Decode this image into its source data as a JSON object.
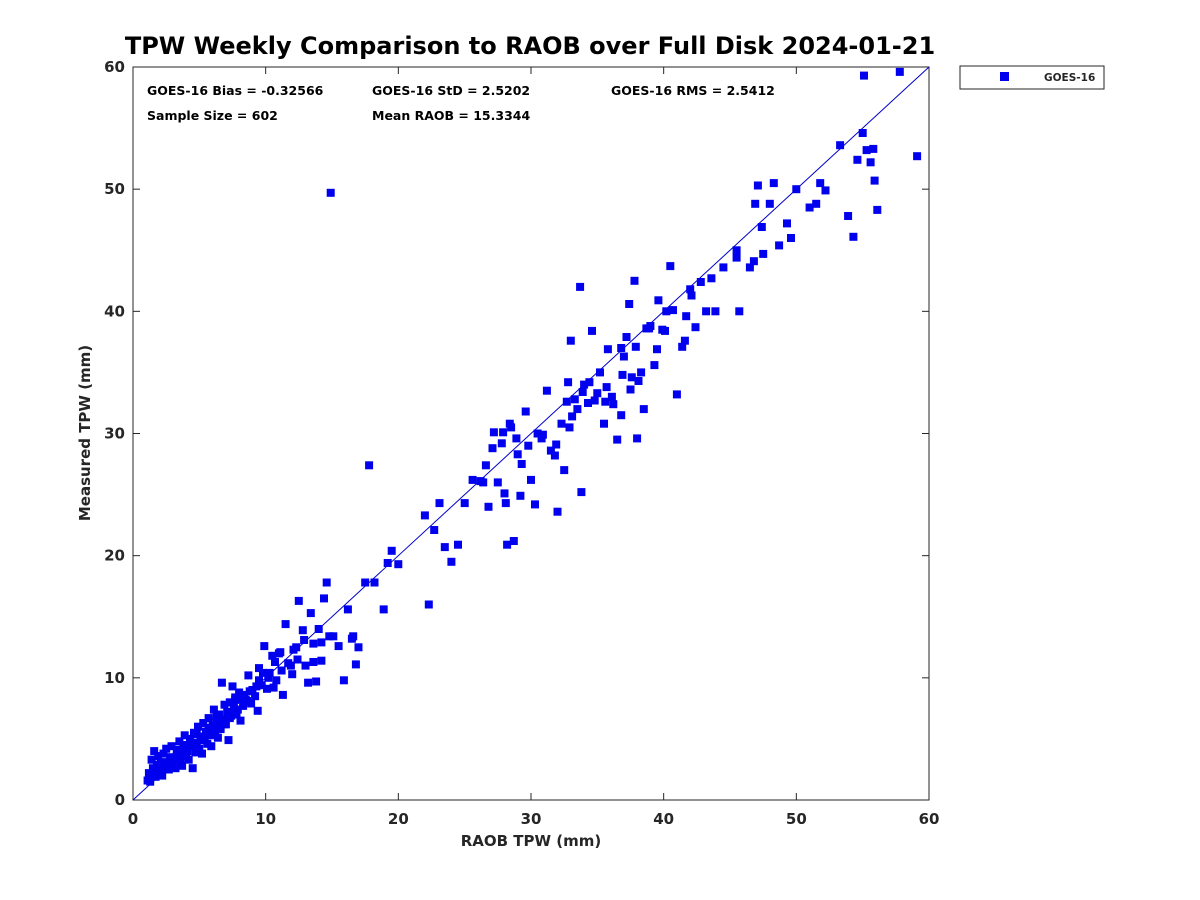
{
  "chart_data": {
    "type": "scatter",
    "title": "TPW Weekly Comparison to RAOB over Full Disk 2024-01-21",
    "xlabel": "RAOB TPW (mm)",
    "ylabel": "Measured TPW (mm)",
    "xlim": [
      0,
      60
    ],
    "ylim": [
      0,
      60
    ],
    "xticks": [
      "0",
      "10",
      "20",
      "30",
      "40",
      "50",
      "60"
    ],
    "yticks": [
      "0",
      "10",
      "20",
      "30",
      "40",
      "50",
      "60"
    ],
    "grid": false,
    "legend_position": "outside-top-right",
    "reference_line": {
      "name": "1:1",
      "x": [
        0,
        60
      ],
      "y": [
        0,
        60
      ],
      "color": "#0000cc"
    },
    "stats": {
      "bias": "GOES-16 Bias = -0.32566",
      "std": "GOES-16 StD = 2.5202",
      "rms": "GOES-16 RMS = 2.5412",
      "sample_size": "Sample Size = 602",
      "mean_raob": "Mean RAOB = 15.3344"
    },
    "series": [
      {
        "name": "GOES-16",
        "color": "#0000ee",
        "marker": "square",
        "points": [
          [
            1.1,
            1.6
          ],
          [
            1.2,
            2.2
          ],
          [
            1.3,
            1.8
          ],
          [
            1.4,
            3.3
          ],
          [
            1.5,
            2.6
          ],
          [
            1.6,
            4.0
          ],
          [
            1.7,
            1.9
          ],
          [
            1.8,
            2.9
          ],
          [
            1.9,
            3.6
          ],
          [
            2.0,
            2.3
          ],
          [
            2.1,
            3.1
          ],
          [
            2.2,
            2.0
          ],
          [
            2.3,
            3.8
          ],
          [
            2.4,
            2.7
          ],
          [
            2.5,
            4.2
          ],
          [
            2.6,
            3.0
          ],
          [
            2.7,
            2.5
          ],
          [
            2.8,
            3.5
          ],
          [
            2.9,
            4.4
          ],
          [
            3.0,
            2.9
          ],
          [
            3.1,
            3.3
          ],
          [
            3.2,
            2.6
          ],
          [
            3.3,
            4.1
          ],
          [
            3.4,
            3.7
          ],
          [
            3.5,
            4.8
          ],
          [
            3.6,
            3.2
          ],
          [
            3.7,
            2.8
          ],
          [
            3.8,
            4.5
          ],
          [
            3.9,
            5.3
          ],
          [
            4.0,
            3.6
          ],
          [
            4.1,
            4.0
          ],
          [
            4.2,
            3.3
          ],
          [
            4.3,
            5.0
          ],
          [
            4.4,
            4.4
          ],
          [
            4.5,
            2.6
          ],
          [
            4.6,
            5.5
          ],
          [
            4.7,
            3.9
          ],
          [
            4.8,
            4.7
          ],
          [
            4.9,
            6.0
          ],
          [
            5.0,
            4.2
          ],
          [
            5.1,
            5.2
          ],
          [
            5.2,
            3.8
          ],
          [
            5.3,
            6.3
          ],
          [
            5.4,
            4.9
          ],
          [
            5.5,
            5.6
          ],
          [
            5.6,
            4.6
          ],
          [
            5.7,
            6.7
          ],
          [
            5.8,
            5.3
          ],
          [
            5.9,
            4.4
          ],
          [
            6.0,
            6.1
          ],
          [
            6.1,
            7.4
          ],
          [
            6.2,
            5.6
          ],
          [
            6.3,
            6.4
          ],
          [
            6.4,
            5.1
          ],
          [
            6.5,
            7.0
          ],
          [
            6.6,
            6.0
          ],
          [
            6.7,
            9.6
          ],
          [
            6.8,
            6.6
          ],
          [
            6.9,
            7.8
          ],
          [
            7.0,
            6.2
          ],
          [
            7.1,
            7.2
          ],
          [
            7.2,
            4.9
          ],
          [
            7.3,
            8.0
          ],
          [
            7.4,
            6.9
          ],
          [
            7.5,
            9.3
          ],
          [
            7.6,
            7.5
          ],
          [
            7.7,
            8.4
          ],
          [
            7.8,
            7.0
          ],
          [
            8.0,
            8.8
          ],
          [
            8.1,
            6.5
          ],
          [
            8.3,
            7.7
          ],
          [
            8.5,
            8.2
          ],
          [
            8.7,
            10.2
          ],
          [
            8.9,
            7.9
          ],
          [
            9.0,
            9.0
          ],
          [
            9.2,
            8.5
          ],
          [
            9.4,
            7.3
          ],
          [
            9.5,
            10.8
          ],
          [
            9.7,
            9.4
          ],
          [
            9.9,
            12.6
          ],
          [
            10.1,
            9.1
          ],
          [
            10.3,
            10.4
          ],
          [
            10.5,
            11.8
          ],
          [
            10.8,
            9.8
          ],
          [
            11.0,
            12.0
          ],
          [
            11.3,
            8.6
          ],
          [
            11.5,
            14.4
          ],
          [
            11.7,
            11.2
          ],
          [
            12.0,
            10.3
          ],
          [
            12.3,
            12.5
          ],
          [
            12.5,
            16.3
          ],
          [
            12.8,
            13.9
          ],
          [
            13.0,
            11.0
          ],
          [
            13.2,
            9.6
          ],
          [
            13.4,
            15.3
          ],
          [
            13.6,
            12.8
          ],
          [
            13.8,
            9.7
          ],
          [
            14.0,
            14.0
          ],
          [
            14.2,
            11.4
          ],
          [
            14.4,
            16.5
          ],
          [
            14.6,
            17.8
          ],
          [
            14.8,
            13.4
          ],
          [
            14.9,
            49.7
          ],
          [
            15.5,
            12.6
          ],
          [
            15.9,
            9.8
          ],
          [
            16.2,
            15.6
          ],
          [
            16.5,
            13.2
          ],
          [
            16.8,
            11.1
          ],
          [
            17.0,
            12.5
          ],
          [
            17.5,
            17.8
          ],
          [
            17.8,
            27.4
          ],
          [
            18.2,
            17.8
          ],
          [
            18.9,
            15.6
          ],
          [
            19.2,
            19.4
          ],
          [
            19.5,
            20.4
          ],
          [
            20.0,
            19.3
          ],
          [
            22.0,
            23.3
          ],
          [
            22.3,
            16.0
          ],
          [
            22.7,
            22.1
          ],
          [
            23.1,
            24.3
          ],
          [
            23.5,
            20.7
          ],
          [
            24.0,
            19.5
          ],
          [
            24.5,
            20.9
          ],
          [
            25.0,
            24.3
          ],
          [
            25.6,
            26.2
          ],
          [
            26.2,
            26.1
          ],
          [
            26.6,
            27.4
          ],
          [
            26.8,
            24.0
          ],
          [
            27.2,
            30.1
          ],
          [
            27.5,
            26.0
          ],
          [
            27.8,
            29.2
          ],
          [
            28.0,
            25.1
          ],
          [
            28.2,
            20.9
          ],
          [
            28.5,
            30.5
          ],
          [
            28.7,
            21.2
          ],
          [
            29.0,
            28.3
          ],
          [
            29.3,
            27.5
          ],
          [
            29.6,
            31.8
          ],
          [
            30.0,
            26.2
          ],
          [
            30.3,
            24.2
          ],
          [
            30.5,
            30.0
          ],
          [
            30.8,
            29.6
          ],
          [
            31.2,
            33.5
          ],
          [
            31.5,
            28.6
          ],
          [
            31.8,
            28.2
          ],
          [
            32.0,
            23.6
          ],
          [
            32.3,
            30.8
          ],
          [
            32.5,
            27.0
          ],
          [
            32.8,
            34.2
          ],
          [
            33.0,
            37.6
          ],
          [
            33.3,
            32.8
          ],
          [
            33.7,
            42.0
          ],
          [
            33.8,
            25.2
          ],
          [
            34.0,
            34.0
          ],
          [
            34.3,
            32.5
          ],
          [
            34.6,
            38.4
          ],
          [
            35.0,
            33.3
          ],
          [
            35.2,
            35.0
          ],
          [
            35.5,
            30.8
          ],
          [
            35.8,
            36.9
          ],
          [
            36.2,
            32.4
          ],
          [
            36.5,
            29.5
          ],
          [
            36.8,
            31.5
          ],
          [
            37.0,
            36.3
          ],
          [
            37.2,
            37.9
          ],
          [
            37.4,
            40.6
          ],
          [
            37.6,
            34.6
          ],
          [
            37.8,
            42.5
          ],
          [
            38.0,
            29.6
          ],
          [
            38.3,
            35.0
          ],
          [
            38.5,
            32.0
          ],
          [
            38.7,
            38.6
          ],
          [
            39.0,
            38.8
          ],
          [
            39.3,
            35.6
          ],
          [
            39.6,
            40.9
          ],
          [
            39.9,
            38.5
          ],
          [
            40.2,
            40.0
          ],
          [
            40.5,
            43.7
          ],
          [
            41.0,
            33.2
          ],
          [
            41.4,
            37.1
          ],
          [
            41.7,
            39.6
          ],
          [
            42.0,
            41.8
          ],
          [
            42.4,
            38.7
          ],
          [
            42.8,
            42.4
          ],
          [
            43.2,
            40.0
          ],
          [
            43.6,
            42.7
          ],
          [
            44.5,
            43.6
          ],
          [
            45.5,
            45.0
          ],
          [
            45.7,
            40.0
          ],
          [
            46.5,
            43.6
          ],
          [
            46.9,
            48.8
          ],
          [
            47.1,
            50.3
          ],
          [
            47.4,
            46.9
          ],
          [
            48.0,
            48.8
          ],
          [
            48.3,
            50.5
          ],
          [
            48.7,
            45.4
          ],
          [
            49.3,
            47.2
          ],
          [
            49.6,
            46.0
          ],
          [
            50.0,
            50.0
          ],
          [
            51.0,
            48.5
          ],
          [
            51.5,
            48.8
          ],
          [
            51.8,
            50.5
          ],
          [
            52.2,
            49.9
          ],
          [
            53.3,
            53.6
          ],
          [
            53.9,
            47.8
          ],
          [
            54.3,
            46.1
          ],
          [
            54.6,
            52.4
          ],
          [
            55.0,
            54.6
          ],
          [
            55.1,
            59.3
          ],
          [
            55.3,
            53.2
          ],
          [
            55.6,
            52.2
          ],
          [
            55.8,
            53.3
          ],
          [
            55.9,
            50.7
          ],
          [
            56.1,
            48.3
          ],
          [
            57.8,
            59.6
          ],
          [
            59.1,
            52.7
          ],
          [
            12.1,
            12.3
          ],
          [
            11.1,
            12.1
          ],
          [
            10.6,
            9.2
          ],
          [
            9.5,
            9.8
          ],
          [
            8.6,
            8.1
          ],
          [
            8.2,
            8.3
          ],
          [
            7.9,
            7.4
          ],
          [
            7.6,
            7.9
          ],
          [
            7.3,
            6.7
          ],
          [
            6.9,
            6.2
          ],
          [
            6.6,
            5.8
          ],
          [
            6.3,
            6.9
          ],
          [
            6.0,
            5.4
          ],
          [
            5.7,
            5.9
          ],
          [
            5.4,
            5.2
          ],
          [
            5.1,
            4.9
          ],
          [
            4.8,
            5.4
          ],
          [
            4.5,
            4.6
          ],
          [
            4.2,
            4.5
          ],
          [
            3.9,
            4.2
          ],
          [
            3.6,
            3.8
          ],
          [
            3.3,
            3.6
          ],
          [
            3.0,
            3.4
          ],
          [
            2.7,
            3.1
          ],
          [
            2.4,
            2.9
          ],
          [
            2.1,
            2.6
          ],
          [
            1.8,
            2.3
          ],
          [
            1.5,
            2.0
          ],
          [
            1.3,
            1.5
          ],
          [
            16.6,
            13.4
          ],
          [
            15.1,
            13.4
          ],
          [
            14.2,
            12.9
          ],
          [
            13.6,
            11.3
          ],
          [
            12.9,
            13.1
          ],
          [
            12.4,
            11.5
          ],
          [
            11.9,
            11.0
          ],
          [
            11.2,
            10.6
          ],
          [
            10.7,
            11.3
          ],
          [
            10.2,
            10.0
          ],
          [
            9.8,
            10.4
          ],
          [
            9.3,
            9.3
          ],
          [
            8.8,
            8.9
          ],
          [
            8.4,
            8.6
          ],
          [
            7.7,
            8.2
          ],
          [
            37.9,
            37.1
          ],
          [
            36.9,
            34.8
          ],
          [
            35.7,
            33.8
          ],
          [
            34.8,
            32.7
          ],
          [
            33.9,
            33.4
          ],
          [
            33.1,
            31.4
          ],
          [
            32.7,
            32.6
          ],
          [
            32.9,
            30.5
          ],
          [
            31.9,
            29.1
          ],
          [
            30.9,
            29.9
          ],
          [
            29.8,
            29.0
          ],
          [
            28.9,
            29.6
          ],
          [
            28.4,
            30.8
          ],
          [
            27.9,
            30.1
          ],
          [
            27.1,
            28.8
          ],
          [
            26.4,
            26.0
          ],
          [
            29.2,
            24.9
          ],
          [
            28.1,
            24.3
          ],
          [
            34.4,
            34.2
          ],
          [
            36.1,
            33.0
          ],
          [
            38.9,
            38.6
          ],
          [
            40.1,
            38.4
          ],
          [
            40.7,
            40.1
          ],
          [
            41.6,
            37.6
          ],
          [
            42.1,
            41.3
          ],
          [
            43.9,
            40.0
          ],
          [
            45.5,
            44.4
          ],
          [
            46.8,
            44.1
          ],
          [
            47.5,
            44.7
          ],
          [
            39.5,
            36.9
          ],
          [
            38.1,
            34.3
          ],
          [
            37.5,
            33.6
          ],
          [
            36.8,
            37.0
          ],
          [
            35.6,
            32.6
          ],
          [
            33.5,
            32.0
          ]
        ]
      }
    ]
  }
}
